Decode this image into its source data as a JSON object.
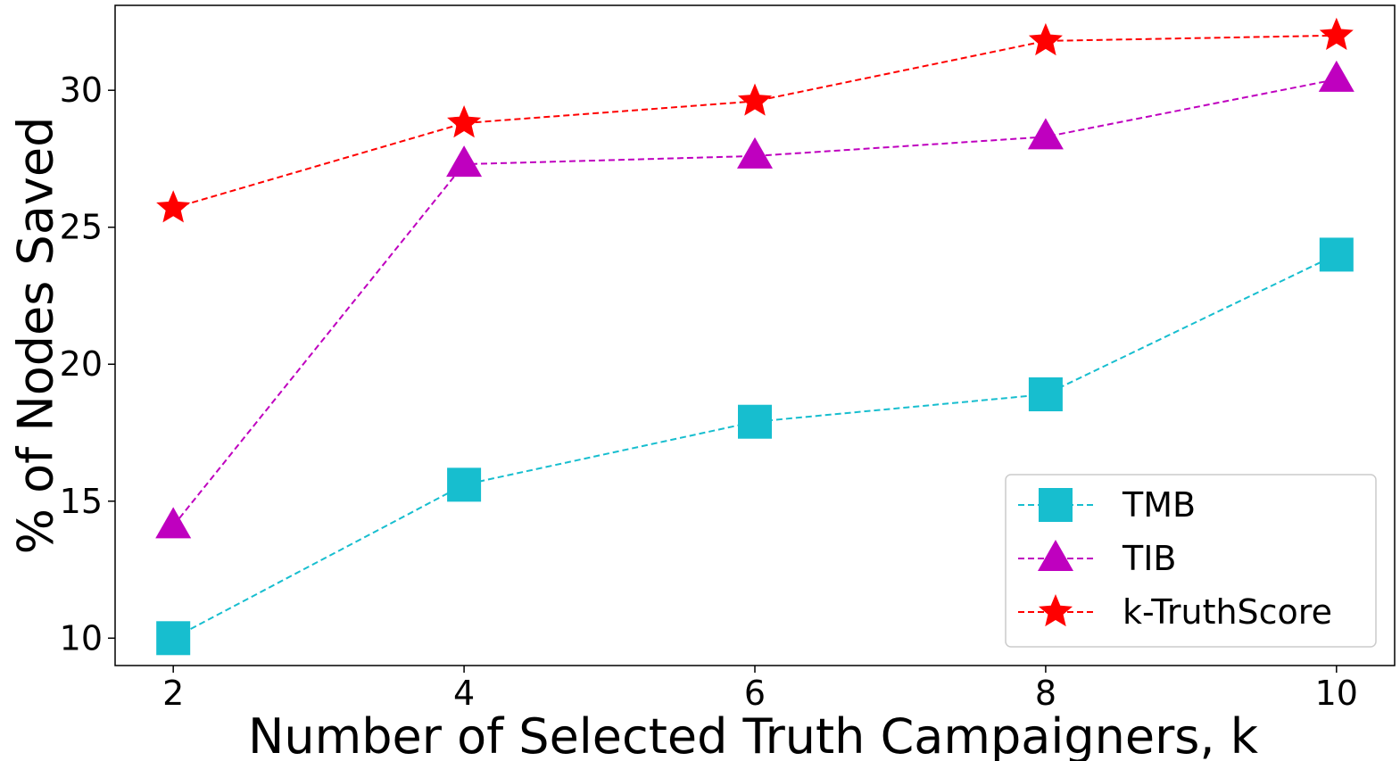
{
  "chart_data": {
    "type": "line",
    "xlabel": "Number of Selected Truth Campaigners, k",
    "ylabel": "% of Nodes Saved",
    "x": [
      2,
      4,
      6,
      8,
      10
    ],
    "xlim": [
      1.6,
      10.4
    ],
    "ylim": [
      9.0,
      33.1
    ],
    "xticks": [
      "2",
      "4",
      "6",
      "8",
      "10"
    ],
    "yticks": [
      "10",
      "15",
      "20",
      "25",
      "30"
    ],
    "xtick_values": [
      2,
      4,
      6,
      8,
      10
    ],
    "ytick_values": [
      10,
      15,
      20,
      25,
      30
    ],
    "grid": false,
    "legend_position": "bottom-right",
    "series": [
      {
        "name": "TMB",
        "values": [
          10.0,
          15.6,
          17.9,
          18.9,
          24.0
        ],
        "color": "#17BECF",
        "marker": "square",
        "linestyle": "dashed"
      },
      {
        "name": "TIB",
        "values": [
          14.1,
          27.3,
          27.6,
          28.3,
          30.4
        ],
        "color": "#BF00BF",
        "marker": "triangle",
        "linestyle": "dashed"
      },
      {
        "name": "k-TruthScore",
        "values": [
          25.7,
          28.8,
          29.6,
          31.8,
          32.0
        ],
        "color": "#FF0000",
        "marker": "star",
        "linestyle": "dashed"
      }
    ]
  }
}
